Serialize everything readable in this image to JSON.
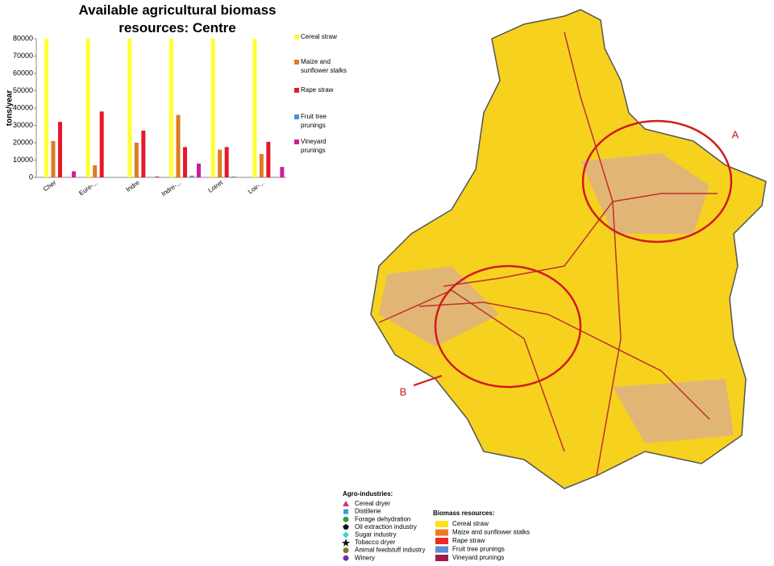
{
  "chart_data": {
    "type": "bar",
    "title": "Available agricultural biomass resources: Centre",
    "y_label": "tons/year",
    "categories": [
      "Cher",
      "Eure-...",
      "Indre",
      "Indre-...",
      "Loiret",
      "Loir-..."
    ],
    "series": [
      {
        "name": "Cereal straw",
        "color": "#ffff33",
        "values": [
          80000,
          80000,
          80000,
          80000,
          80000,
          80000
        ]
      },
      {
        "name": "Maize and sunflower stalks",
        "color": "#e07b20",
        "values": [
          21000,
          7000,
          20000,
          36000,
          16000,
          13500
        ]
      },
      {
        "name": "Rape straw",
        "color": "#e8182c",
        "values": [
          32000,
          38000,
          27000,
          17500,
          17500,
          20500
        ]
      },
      {
        "name": "Fruit tree prunings",
        "color": "#4a90d9",
        "values": [
          200,
          100,
          300,
          1000,
          500,
          300
        ]
      },
      {
        "name": "Vineyard prunings",
        "color": "#cc1f9a",
        "values": [
          3500,
          0,
          500,
          8000,
          0,
          6000
        ]
      }
    ],
    "ylim": [
      0,
      80000
    ],
    "yticks": [
      0,
      10000,
      20000,
      30000,
      40000,
      50000,
      60000,
      70000,
      80000
    ],
    "grid": false
  },
  "map": {
    "labels": [
      "A",
      "B"
    ],
    "agro_title": "Agro-industries:",
    "agro": [
      {
        "name": "Cereal dryer",
        "color": "#d6337f"
      },
      {
        "name": "Distillerie",
        "color": "#3b9ad9"
      },
      {
        "name": "Forage dehydration",
        "color": "#2e9e3a"
      },
      {
        "name": "Oil extraction industry",
        "color": "#111111"
      },
      {
        "name": "Sugar industry",
        "color": "#33d6d6"
      },
      {
        "name": "Tobacco dryer",
        "color": "#111111"
      },
      {
        "name": "Animal feedstuff industry",
        "color": "#7a7a2a"
      },
      {
        "name": "Winery",
        "color": "#7a2ab0"
      }
    ],
    "biomass_title": "Biomass resources:",
    "biomass": [
      {
        "name": "Cereal straw",
        "color": "#ffe11a"
      },
      {
        "name": "Maize and sunflower stalks",
        "color": "#f07a22"
      },
      {
        "name": "Rape straw",
        "color": "#ef2a2a"
      },
      {
        "name": "Fruit tree prunings",
        "color": "#5b8fd6"
      },
      {
        "name": "Vineyard prunings",
        "color": "#9c1f4a"
      }
    ]
  }
}
